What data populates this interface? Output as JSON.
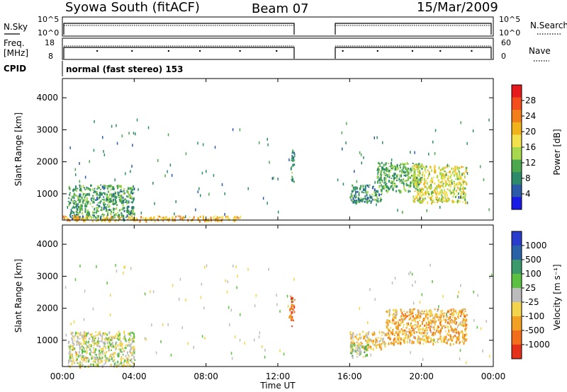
{
  "header": {
    "station": "Syowa South (fitACF)",
    "beam": "Beam 07",
    "date": "15/Mar/2009"
  },
  "status_panels": {
    "nsky_label": "N.Sky",
    "nsky_ticks": [
      "10^5",
      "10^0"
    ],
    "nsearch_label": "N.Search",
    "nsearch_ticks": [
      "10^5",
      "10^0"
    ],
    "freq_label_1": "Freq.",
    "freq_label_2": "[MHz]",
    "freq_ticks": [
      "18",
      "8"
    ],
    "nave_label": "Nave",
    "nave_ticks": [
      "60",
      "0"
    ],
    "cpid_label": "CPID",
    "cpid_text": "normal (fast stereo) 153"
  },
  "axes": {
    "ylabel": "Slant Range [km]",
    "yticks": [
      "4000",
      "3000",
      "2000",
      "1000"
    ],
    "xticks": [
      "00:00",
      "04:00",
      "08:00",
      "12:00",
      "16:00",
      "20:00",
      "00:00"
    ],
    "xlabel": "Time UT"
  },
  "colorbars": {
    "power": {
      "label": "Power [dB]",
      "ticks": [
        "28",
        "24",
        "20",
        "16",
        "12",
        "8",
        "4"
      ],
      "colors": [
        "#e61a1a",
        "#f24d1a",
        "#f27f1a",
        "#f2b21a",
        "#f2e04d",
        "#a8d84d",
        "#4ca84c",
        "#2e8b6a",
        "#2a5aa8",
        "#1a1ae6"
      ]
    },
    "velocity": {
      "label": "Velocity [m s⁻¹]",
      "ticks": [
        "1000",
        "500",
        "100",
        "25",
        "-25",
        "-100",
        "-500",
        "-1000"
      ],
      "colors": [
        "#2a3ccc",
        "#2a62a8",
        "#3c9a6a",
        "#5cc040",
        "#bcbcbc",
        "#f2d44d",
        "#f2a024",
        "#f26e1a",
        "#e6301a"
      ]
    }
  },
  "chart_data": {
    "type": "heatmap",
    "title": "Syowa South (fitACF)",
    "xlabel": "Time UT",
    "ylabel": "Slant Range [km]",
    "xlim": [
      0,
      24
    ],
    "ylim": [
      180,
      4600
    ],
    "data_gap_hours": [
      13,
      15.3
    ],
    "panels": [
      {
        "name": "Power",
        "units": "dB",
        "clim": [
          0,
          30
        ],
        "regions": [
          {
            "t": [
              0.3,
              4.0
            ],
            "r": [
              200,
              1300
            ],
            "level": 9
          },
          {
            "t": [
              0.0,
              10.0
            ],
            "r": [
              180,
              330
            ],
            "level": 20
          },
          {
            "t": [
              16.0,
              17.8
            ],
            "r": [
              750,
              1300
            ],
            "level": 8
          },
          {
            "t": [
              17.5,
              20.0
            ],
            "r": [
              1100,
              2000
            ],
            "level": 10
          },
          {
            "t": [
              19.5,
              22.5
            ],
            "r": [
              750,
              1900
            ],
            "level": 16
          },
          {
            "t": [
              12.7,
              12.9
            ],
            "r": [
              1400,
              2400
            ],
            "level": 8
          }
        ]
      },
      {
        "name": "Velocity",
        "units": "m s-1",
        "clim": [
          -1000,
          1000
        ],
        "regions": [
          {
            "t": [
              0.3,
              4.0
            ],
            "r": [
              200,
              1300
            ],
            "level": -50
          },
          {
            "t": [
              16.0,
              18.0
            ],
            "r": [
              750,
              1300
            ],
            "level": -300
          },
          {
            "t": [
              18.0,
              22.5
            ],
            "r": [
              900,
              2000
            ],
            "level": -400
          },
          {
            "t": [
              12.6,
              12.9
            ],
            "r": [
              1400,
              2400
            ],
            "level": -800
          },
          {
            "t": [
              16.0,
              17.0
            ],
            "r": [
              500,
              900
            ],
            "level": 100
          }
        ]
      }
    ]
  }
}
